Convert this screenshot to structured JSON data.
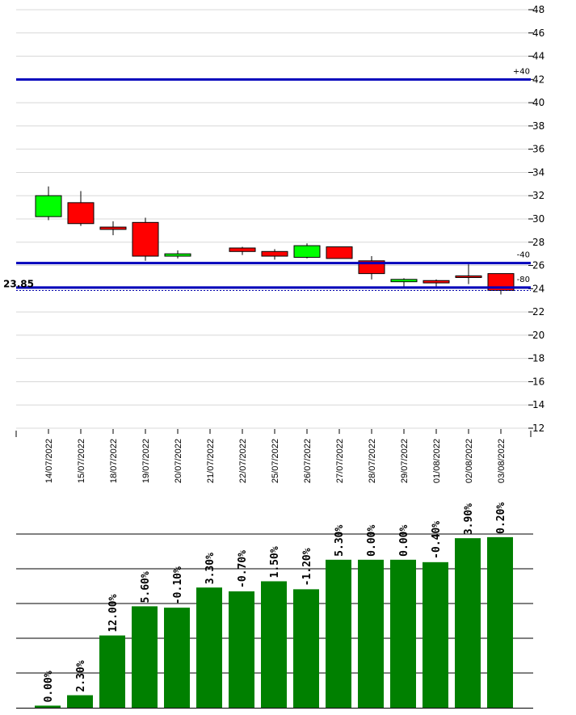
{
  "chart_data": [
    {
      "type": "candlestick",
      "categories": [
        "14/07/2022",
        "15/07/2022",
        "18/07/2022",
        "19/07/2022",
        "20/07/2022",
        "21/07/2022",
        "22/07/2022",
        "25/07/2022",
        "26/07/2022",
        "27/07/2022",
        "28/07/2022",
        "29/07/2022",
        "01/08/2022",
        "02/08/2022",
        "03/08/2022"
      ],
      "candles": [
        {
          "open": 30.2,
          "high": 32.8,
          "low": 29.9,
          "close": 32.0
        },
        {
          "open": 31.4,
          "high": 32.4,
          "low": 29.4,
          "close": 29.6
        },
        {
          "open": 29.3,
          "high": 29.8,
          "low": 28.6,
          "close": 29.1
        },
        {
          "open": 29.7,
          "high": 30.1,
          "low": 26.4,
          "close": 26.8
        },
        {
          "open": 26.8,
          "high": 27.3,
          "low": 26.6,
          "close": 27.0
        },
        null,
        {
          "open": 27.5,
          "high": 27.6,
          "low": 26.9,
          "close": 27.2
        },
        {
          "open": 27.2,
          "high": 27.4,
          "low": 26.5,
          "close": 26.8
        },
        {
          "open": 26.7,
          "high": 27.9,
          "low": 26.6,
          "close": 27.7
        },
        {
          "open": 27.6,
          "high": 27.6,
          "low": 26.6,
          "close": 26.6
        },
        {
          "open": 26.4,
          "high": 26.8,
          "low": 24.8,
          "close": 25.3
        },
        {
          "open": 24.6,
          "high": 24.9,
          "low": 24.2,
          "close": 24.8
        },
        {
          "open": 24.7,
          "high": 24.8,
          "low": 24.2,
          "close": 24.5
        },
        {
          "open": 25.1,
          "high": 26.1,
          "low": 24.4,
          "close": 25.0
        },
        {
          "open": 25.3,
          "high": 25.3,
          "low": 23.5,
          "close": 23.85
        }
      ],
      "ylim": [
        12,
        48
      ],
      "yticks": [
        12,
        14,
        16,
        18,
        20,
        22,
        24,
        26,
        28,
        30,
        32,
        34,
        36,
        38,
        40,
        42,
        44,
        46,
        48
      ],
      "levels": [
        {
          "value": 42,
          "label": "+40"
        },
        {
          "value": 26.2,
          "label": "-40"
        },
        {
          "value": 24.1,
          "label": "-80"
        }
      ],
      "last_price": {
        "value": 23.85,
        "label": "23.85"
      },
      "grid": true,
      "colors": {
        "up": "#00ff00",
        "down": "#ff0000",
        "level": "#0000bb",
        "grid": "#d8d8d8",
        "last_price": "#0000aa"
      }
    },
    {
      "type": "bar",
      "categories": [
        "14/07/2022",
        "15/07/2022",
        "18/07/2022",
        "19/07/2022",
        "20/07/2022",
        "21/07/2022",
        "22/07/2022",
        "25/07/2022",
        "26/07/2022",
        "27/07/2022",
        "28/07/2022",
        "29/07/2022",
        "01/08/2022",
        "02/08/2022",
        "03/08/2022"
      ],
      "values": [
        0.6,
        3.6,
        20.8,
        29.2,
        28.8,
        34.6,
        33.5,
        36.4,
        34.1,
        42.6,
        42.6,
        42.6,
        41.9,
        48.8,
        49.1
      ],
      "labels": [
        "0.00%",
        "2.30%",
        "12.00%",
        "5.60%",
        "-0.10%",
        "3.30%",
        "-0.70%",
        "1.50%",
        "-1.20%",
        "5.30%",
        "0.00%",
        "0.00%",
        "-0.40%",
        "3.90%",
        "0.20%"
      ],
      "ylim": [
        0,
        50
      ],
      "gridlines": [
        10,
        20,
        30,
        40,
        50
      ],
      "colors": {
        "bar": "#008000",
        "grid": "#000000"
      }
    }
  ]
}
